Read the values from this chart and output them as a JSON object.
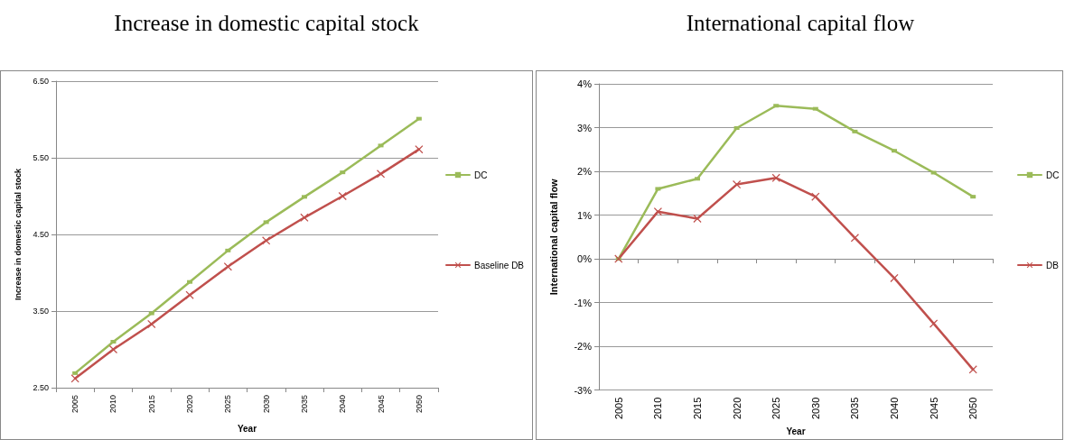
{
  "chart_data": [
    {
      "type": "line",
      "title": "Increase in domestic capital stock",
      "xlabel": "Year",
      "ylabel": "Increase in domestic capital stock",
      "categories": [
        "2005",
        "2010",
        "2015",
        "2020",
        "2025",
        "2030",
        "2035",
        "2040",
        "2045",
        "2050"
      ],
      "series": [
        {
          "name": "DC",
          "color": "#9bbb59",
          "marker": "square",
          "values": [
            2.69,
            3.1,
            3.47,
            3.88,
            4.29,
            4.66,
            4.99,
            5.31,
            5.66,
            6.01
          ]
        },
        {
          "name": "Baseline DB",
          "color": "#c0504d",
          "marker": "cross",
          "values": [
            2.62,
            3.0,
            3.33,
            3.71,
            4.08,
            4.42,
            4.72,
            5.0,
            5.29,
            5.61
          ]
        }
      ],
      "ylim": [
        2.5,
        6.5
      ],
      "yticks": [
        {
          "value": 2.5,
          "label": "2.50"
        },
        {
          "value": 3.5,
          "label": "3.50"
        },
        {
          "value": 4.5,
          "label": "4.50"
        },
        {
          "value": 5.5,
          "label": "5.50"
        },
        {
          "value": 6.5,
          "label": "6.50"
        }
      ],
      "grid": "y",
      "legend": "right",
      "line_style": "solid"
    },
    {
      "type": "line",
      "title": "International capital flow",
      "xlabel": "Year",
      "ylabel": "International capital flow",
      "categories": [
        "2005",
        "2010",
        "2015",
        "2020",
        "2025",
        "2030",
        "2035",
        "2040",
        "2045",
        "2050"
      ],
      "series": [
        {
          "name": "DC",
          "color": "#9bbb59",
          "marker": "square",
          "values": [
            0,
            1.6,
            1.83,
            2.99,
            3.5,
            3.43,
            2.91,
            2.47,
            1.97,
            1.42
          ]
        },
        {
          "name": "DB",
          "color": "#c0504d",
          "marker": "cross",
          "values": [
            0,
            1.08,
            0.92,
            1.7,
            1.85,
            1.42,
            0.48,
            -0.44,
            -1.48,
            -2.53
          ]
        }
      ],
      "ylim": [
        -3,
        4
      ],
      "yticks": [
        {
          "value": -3,
          "label": "-3%"
        },
        {
          "value": -2,
          "label": "-2%"
        },
        {
          "value": -1,
          "label": "-1%"
        },
        {
          "value": 0,
          "label": "0%"
        },
        {
          "value": 1,
          "label": "1%"
        },
        {
          "value": 2,
          "label": "2%"
        },
        {
          "value": 3,
          "label": "3%"
        },
        {
          "value": 4,
          "label": "4%"
        }
      ],
      "grid": "y",
      "legend": "right",
      "line_style": "solid"
    }
  ]
}
